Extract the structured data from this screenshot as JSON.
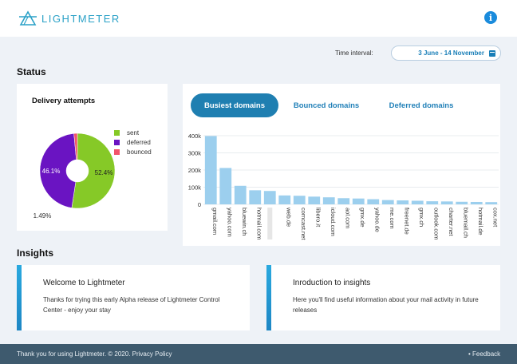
{
  "header": {
    "logo_text": "LIGHTMETER",
    "logo_icon": "prism-logo-icon",
    "info_icon": "info-icon"
  },
  "time_interval": {
    "label": "Time interval:",
    "value": "3 June - 14 November",
    "icon": "calendar-icon"
  },
  "status": {
    "title": "Status",
    "delivery": {
      "title": "Delivery attempts",
      "legend": [
        {
          "label": "sent",
          "color": "#86c927"
        },
        {
          "label": "deferred",
          "color": "#6a14c2"
        },
        {
          "label": "bounced",
          "color": "#f2546a"
        }
      ],
      "slice_labels": [
        "52.4%",
        "46.1%",
        "1.49%"
      ]
    },
    "domains": {
      "tabs": [
        {
          "label": "Busiest domains",
          "active": true
        },
        {
          "label": "Bounced domains",
          "active": false
        },
        {
          "label": "Deferred domains",
          "active": false
        }
      ]
    }
  },
  "chart_data": [
    {
      "type": "pie",
      "title": "Delivery attempts",
      "labels": [
        "sent",
        "deferred",
        "bounced"
      ],
      "values": [
        52.4,
        46.1,
        1.49
      ],
      "colors": [
        "#86c927",
        "#6a14c2",
        "#f2546a"
      ],
      "legend": "right"
    },
    {
      "type": "bar",
      "categories": [
        "gmail.com",
        "yahoo.com",
        "bluewin.ch",
        "hotmail.com",
        "",
        "web.de",
        "comcast.net",
        "libero.it",
        "icloud.com",
        "aol.com",
        "gmx.de",
        "yahoo.de",
        "me.com",
        "freenet.de",
        "gmx.ch",
        "outlook.com",
        "charter.net",
        "bluemail.ch",
        "hotmail.de",
        "cox.net"
      ],
      "values": [
        398000,
        212000,
        108000,
        82000,
        78000,
        52000,
        50000,
        45000,
        41000,
        36000,
        34000,
        30000,
        25000,
        23000,
        21000,
        18000,
        17000,
        15000,
        14000,
        13000
      ],
      "ylim": [
        0,
        400000
      ],
      "yticks": [
        "0",
        "100k",
        "200k",
        "300k",
        "400k"
      ],
      "color": "#9ccfee",
      "grid": true
    }
  ],
  "insights": {
    "title": "Insights",
    "cards": [
      {
        "title": "Welcome to Lightmeter",
        "body": "Thanks for trying this early Alpha release of Lightmeter Control Center - enjoy your stay"
      },
      {
        "title": "Inroduction to insights",
        "body": "Here you'll find useful information about your mail activity in future releases"
      }
    ]
  },
  "footer": {
    "text": "Thank you for using Lightmeter. © 2020.",
    "privacy_link": "Privacy Policy",
    "feedback": "• Feedback"
  }
}
